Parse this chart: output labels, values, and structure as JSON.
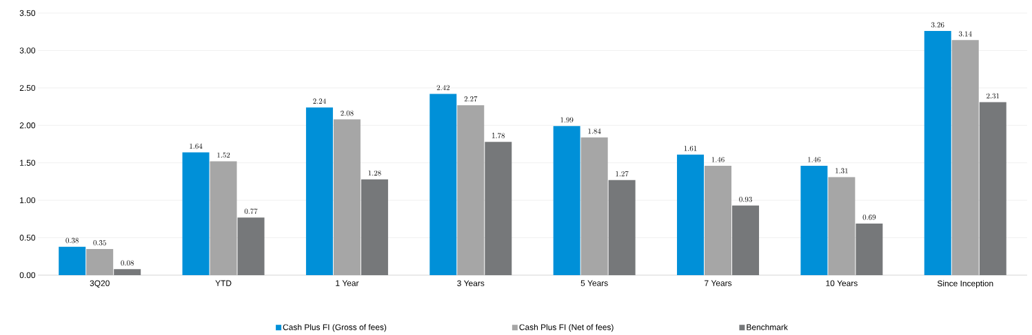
{
  "chart_data": {
    "type": "bar",
    "categories": [
      "3Q20",
      "YTD",
      "1 Year",
      "3 Years",
      "5 Years",
      "7 Years",
      "10 Years",
      "Since Inception"
    ],
    "series": [
      {
        "name": "Cash Plus FI (Gross of fees)",
        "color": "#0090d8",
        "values": [
          0.38,
          1.64,
          2.24,
          2.42,
          1.99,
          1.61,
          1.46,
          3.26
        ]
      },
      {
        "name": "Cash Plus FI (Net of fees)",
        "color": "#a6a6a6",
        "values": [
          0.35,
          1.52,
          2.08,
          2.27,
          1.84,
          1.46,
          1.31,
          3.14
        ]
      },
      {
        "name": "Benchmark",
        "color": "#76787a",
        "values": [
          0.08,
          0.77,
          1.28,
          1.78,
          1.27,
          0.93,
          0.69,
          2.31
        ]
      }
    ],
    "ylim": [
      0,
      3.5
    ],
    "yticks": [
      {
        "value": 0,
        "label": "0.00"
      },
      {
        "value": 0.5,
        "label": "0.50"
      },
      {
        "value": 1,
        "label": "1.00"
      },
      {
        "value": 1.5,
        "label": "1.50"
      },
      {
        "value": 2,
        "label": "2.00"
      },
      {
        "value": 2.5,
        "label": "2.50"
      },
      {
        "value": 3,
        "label": "3.00"
      },
      {
        "value": 3.5,
        "label": "3.50"
      }
    ],
    "grid": "y",
    "legend": "bottom",
    "data_labels": true
  }
}
